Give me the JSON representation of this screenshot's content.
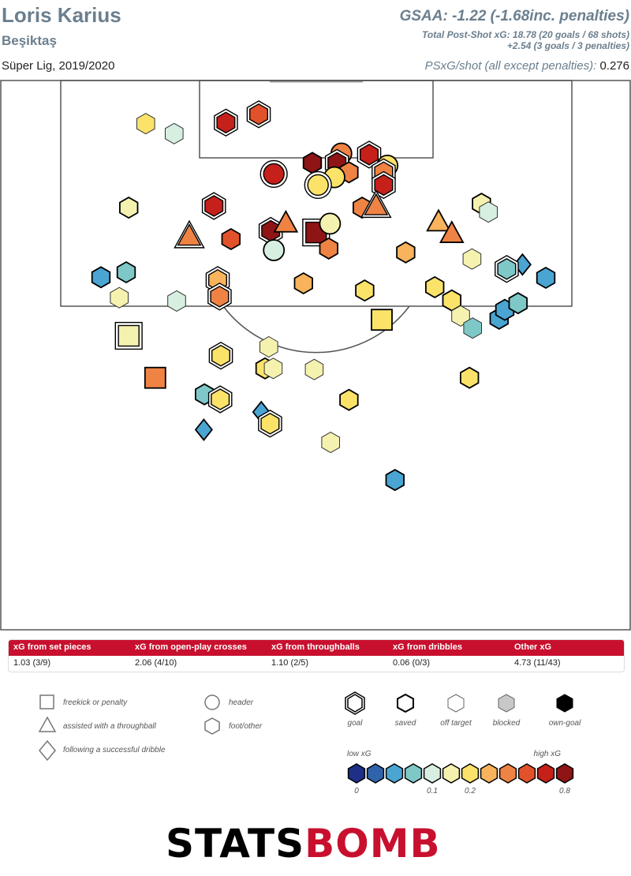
{
  "header": {
    "player": "Loris Karius",
    "team": "Beşiktaş",
    "season": "Süper Lig, 2019/2020",
    "gsaa": "GSAA: -1.22 (-1.68inc. penalties)",
    "psxg_total": "Total Post-Shot xG: 18.78 (20 goals / 68 shots)",
    "psxg_penalties": "+2.54 (3 goals / 3 penalties)",
    "psxg_shot_label": "PSxG/shot (all except penalties):",
    "psxg_shot_value": "0.276"
  },
  "xg_table": {
    "headers": [
      "xG from set pieces",
      "xG from open-play crosses",
      "xG from throughballs",
      "xG from dribbles",
      "Other xG"
    ],
    "values": [
      "1.03 (3/9)",
      "2.06 (4/10)",
      "1.10 (2/5)",
      "0.06 (0/3)",
      "4.73 (11/43)"
    ]
  },
  "legend": {
    "shapes": [
      "freekick or penalty",
      "assisted with a throughball",
      "following a successful dribble",
      "header",
      "foot/other"
    ],
    "outcomes": [
      "goal",
      "saved",
      "off target",
      "blocked",
      "own-goal"
    ],
    "scale_low": "low xG",
    "scale_high": "high xG",
    "scale_ticks": [
      "0",
      "0.1",
      "0.2",
      "0.8"
    ],
    "scale_colors": [
      "#1d2f86",
      "#2f64ad",
      "#4aa5d2",
      "#7fc8c8",
      "#d6efe0",
      "#f5f2b0",
      "#fbe36a",
      "#f8b35c",
      "#ef8344",
      "#e2522a",
      "#c6201a",
      "#8e1416"
    ]
  },
  "footer": {
    "brand_a": "STATS",
    "brand_b": "BOMB"
  },
  "colors": {
    "title": "#6b7f8e",
    "table_header": "#c8102e"
  },
  "chart_data": {
    "type": "scatter",
    "description_axes": "shot locations on half pitch, x = across pitch (0-100), y = distance from goal line (0-100)",
    "shots": [
      {
        "x": 23.1,
        "y": 8.1,
        "shape": "foot",
        "outcome": "off",
        "color": "#fbe36a"
      },
      {
        "x": 27.6,
        "y": 9.9,
        "shape": "foot",
        "outcome": "off",
        "color": "#d6efe0"
      },
      {
        "x": 35.8,
        "y": 7.9,
        "shape": "foot",
        "outcome": "goal",
        "color": "#c6201a"
      },
      {
        "x": 41.0,
        "y": 6.4,
        "shape": "foot",
        "outcome": "goal",
        "color": "#e2522a"
      },
      {
        "x": 43.4,
        "y": 17.2,
        "shape": "header",
        "outcome": "goal",
        "color": "#c6201a"
      },
      {
        "x": 49.5,
        "y": 15.2,
        "shape": "foot",
        "outcome": "saved",
        "color": "#8e1416"
      },
      {
        "x": 54.1,
        "y": 13.5,
        "shape": "header",
        "outcome": "saved",
        "color": "#ef8344"
      },
      {
        "x": 53.4,
        "y": 15.2,
        "shape": "foot",
        "outcome": "goal",
        "color": "#8e1416"
      },
      {
        "x": 55.3,
        "y": 16.9,
        "shape": "foot",
        "outcome": "saved",
        "color": "#ef8344"
      },
      {
        "x": 58.5,
        "y": 13.7,
        "shape": "foot",
        "outcome": "goal",
        "color": "#c6201a"
      },
      {
        "x": 61.4,
        "y": 15.7,
        "shape": "header",
        "outcome": "saved",
        "color": "#fbe36a"
      },
      {
        "x": 60.8,
        "y": 16.9,
        "shape": "foot",
        "outcome": "goal",
        "color": "#ef8344"
      },
      {
        "x": 53.0,
        "y": 17.8,
        "shape": "header",
        "outcome": "saved",
        "color": "#fbe36a"
      },
      {
        "x": 50.4,
        "y": 19.2,
        "shape": "header",
        "outcome": "goal",
        "color": "#fbe36a"
      },
      {
        "x": 60.8,
        "y": 19.2,
        "shape": "foot",
        "outcome": "goal",
        "color": "#c6201a"
      },
      {
        "x": 20.4,
        "y": 23.3,
        "shape": "foot",
        "outcome": "saved",
        "color": "#f5f2b0"
      },
      {
        "x": 33.9,
        "y": 23.0,
        "shape": "foot",
        "outcome": "goal",
        "color": "#c6201a"
      },
      {
        "x": 57.4,
        "y": 23.3,
        "shape": "foot",
        "outcome": "saved",
        "color": "#ef8344"
      },
      {
        "x": 59.6,
        "y": 23.0,
        "shape": "throughball",
        "outcome": "goal",
        "color": "#ef8344"
      },
      {
        "x": 76.3,
        "y": 22.6,
        "shape": "foot",
        "outcome": "saved",
        "color": "#f5f2b0"
      },
      {
        "x": 77.4,
        "y": 24.1,
        "shape": "foot",
        "outcome": "off",
        "color": "#d6efe0"
      },
      {
        "x": 30.0,
        "y": 28.5,
        "shape": "throughball",
        "outcome": "goal",
        "color": "#ef8344"
      },
      {
        "x": 36.6,
        "y": 29.0,
        "shape": "foot",
        "outcome": "saved",
        "color": "#e2522a"
      },
      {
        "x": 42.9,
        "y": 27.5,
        "shape": "foot",
        "outcome": "goal",
        "color": "#8e1416"
      },
      {
        "x": 45.3,
        "y": 26.1,
        "shape": "throughball",
        "outcome": "saved",
        "color": "#ef8344"
      },
      {
        "x": 43.4,
        "y": 31.0,
        "shape": "header",
        "outcome": "saved",
        "color": "#d6efe0"
      },
      {
        "x": 50.1,
        "y": 27.8,
        "shape": "freekick",
        "outcome": "goal",
        "color": "#8e1416"
      },
      {
        "x": 52.3,
        "y": 26.2,
        "shape": "header",
        "outcome": "saved",
        "color": "#f5f2b0"
      },
      {
        "x": 52.1,
        "y": 30.7,
        "shape": "foot",
        "outcome": "saved",
        "color": "#ef8344"
      },
      {
        "x": 69.5,
        "y": 25.9,
        "shape": "throughball",
        "outcome": "saved",
        "color": "#f8b35c"
      },
      {
        "x": 71.6,
        "y": 28.0,
        "shape": "throughball",
        "outcome": "saved",
        "color": "#ef8344"
      },
      {
        "x": 64.3,
        "y": 31.4,
        "shape": "foot",
        "outcome": "saved",
        "color": "#f8b35c"
      },
      {
        "x": 74.8,
        "y": 32.6,
        "shape": "foot",
        "outcome": "off",
        "color": "#f5f2b0"
      },
      {
        "x": 82.8,
        "y": 33.6,
        "shape": "dribble",
        "outcome": "saved",
        "color": "#4aa5d2"
      },
      {
        "x": 80.3,
        "y": 34.4,
        "shape": "foot",
        "outcome": "goal",
        "color": "#7fc8c8"
      },
      {
        "x": 86.5,
        "y": 36.0,
        "shape": "foot",
        "outcome": "saved",
        "color": "#4aa5d2"
      },
      {
        "x": 16.0,
        "y": 35.9,
        "shape": "foot",
        "outcome": "saved",
        "color": "#4aa5d2"
      },
      {
        "x": 20.0,
        "y": 35.0,
        "shape": "foot",
        "outcome": "saved",
        "color": "#7fc8c8"
      },
      {
        "x": 18.9,
        "y": 39.6,
        "shape": "foot",
        "outcome": "off",
        "color": "#f5f2b0"
      },
      {
        "x": 28.0,
        "y": 40.2,
        "shape": "foot",
        "outcome": "off",
        "color": "#d6efe0"
      },
      {
        "x": 34.5,
        "y": 36.4,
        "shape": "foot",
        "outcome": "goal",
        "color": "#f8b35c"
      },
      {
        "x": 34.8,
        "y": 39.4,
        "shape": "foot",
        "outcome": "goal",
        "color": "#ef8344"
      },
      {
        "x": 48.1,
        "y": 37.0,
        "shape": "foot",
        "outcome": "saved",
        "color": "#f8b35c"
      },
      {
        "x": 57.8,
        "y": 38.3,
        "shape": "foot",
        "outcome": "saved",
        "color": "#fbe36a"
      },
      {
        "x": 68.9,
        "y": 37.7,
        "shape": "foot",
        "outcome": "saved",
        "color": "#fbe36a"
      },
      {
        "x": 71.6,
        "y": 40.1,
        "shape": "foot",
        "outcome": "saved",
        "color": "#fbe36a"
      },
      {
        "x": 73.0,
        "y": 42.9,
        "shape": "foot",
        "outcome": "off",
        "color": "#f5f2b0"
      },
      {
        "x": 74.9,
        "y": 45.1,
        "shape": "foot",
        "outcome": "off",
        "color": "#7fc8c8"
      },
      {
        "x": 79.1,
        "y": 43.4,
        "shape": "foot",
        "outcome": "saved",
        "color": "#4aa5d2"
      },
      {
        "x": 80.0,
        "y": 41.8,
        "shape": "foot",
        "outcome": "saved",
        "color": "#4aa5d2"
      },
      {
        "x": 82.1,
        "y": 40.6,
        "shape": "foot",
        "outcome": "saved",
        "color": "#7fc8c8"
      },
      {
        "x": 60.5,
        "y": 43.6,
        "shape": "freekick",
        "outcome": "saved",
        "color": "#fbe36a"
      },
      {
        "x": 20.4,
        "y": 46.5,
        "shape": "freekick",
        "outcome": "goal",
        "color": "#f5f2b0"
      },
      {
        "x": 35.0,
        "y": 50.1,
        "shape": "foot",
        "outcome": "goal",
        "color": "#fbe36a"
      },
      {
        "x": 42.6,
        "y": 48.5,
        "shape": "foot",
        "outcome": "off",
        "color": "#f5f2b0"
      },
      {
        "x": 42.0,
        "y": 52.4,
        "shape": "foot",
        "outcome": "saved",
        "color": "#fbe36a"
      },
      {
        "x": 43.3,
        "y": 52.4,
        "shape": "foot",
        "outcome": "off",
        "color": "#f5f2b0"
      },
      {
        "x": 49.8,
        "y": 52.6,
        "shape": "foot",
        "outcome": "off",
        "color": "#f5f2b0"
      },
      {
        "x": 24.6,
        "y": 54.1,
        "shape": "freekick",
        "outcome": "saved",
        "color": "#ef8344"
      },
      {
        "x": 74.4,
        "y": 54.1,
        "shape": "foot",
        "outcome": "saved",
        "color": "#fbe36a"
      },
      {
        "x": 32.4,
        "y": 57.1,
        "shape": "foot",
        "outcome": "saved",
        "color": "#7fc8c8"
      },
      {
        "x": 34.9,
        "y": 58.0,
        "shape": "foot",
        "outcome": "goal",
        "color": "#fbe36a"
      },
      {
        "x": 55.3,
        "y": 58.1,
        "shape": "foot",
        "outcome": "saved",
        "color": "#fbe36a"
      },
      {
        "x": 41.4,
        "y": 60.3,
        "shape": "dribble",
        "outcome": "saved",
        "color": "#4aa5d2"
      },
      {
        "x": 42.8,
        "y": 62.4,
        "shape": "foot",
        "outcome": "goal",
        "color": "#fbe36a"
      },
      {
        "x": 32.3,
        "y": 63.5,
        "shape": "dribble",
        "outcome": "saved",
        "color": "#4aa5d2"
      },
      {
        "x": 52.4,
        "y": 65.8,
        "shape": "foot",
        "outcome": "off",
        "color": "#f5f2b0"
      },
      {
        "x": 62.6,
        "y": 72.6,
        "shape": "foot",
        "outcome": "saved",
        "color": "#4aa5d2"
      }
    ]
  }
}
